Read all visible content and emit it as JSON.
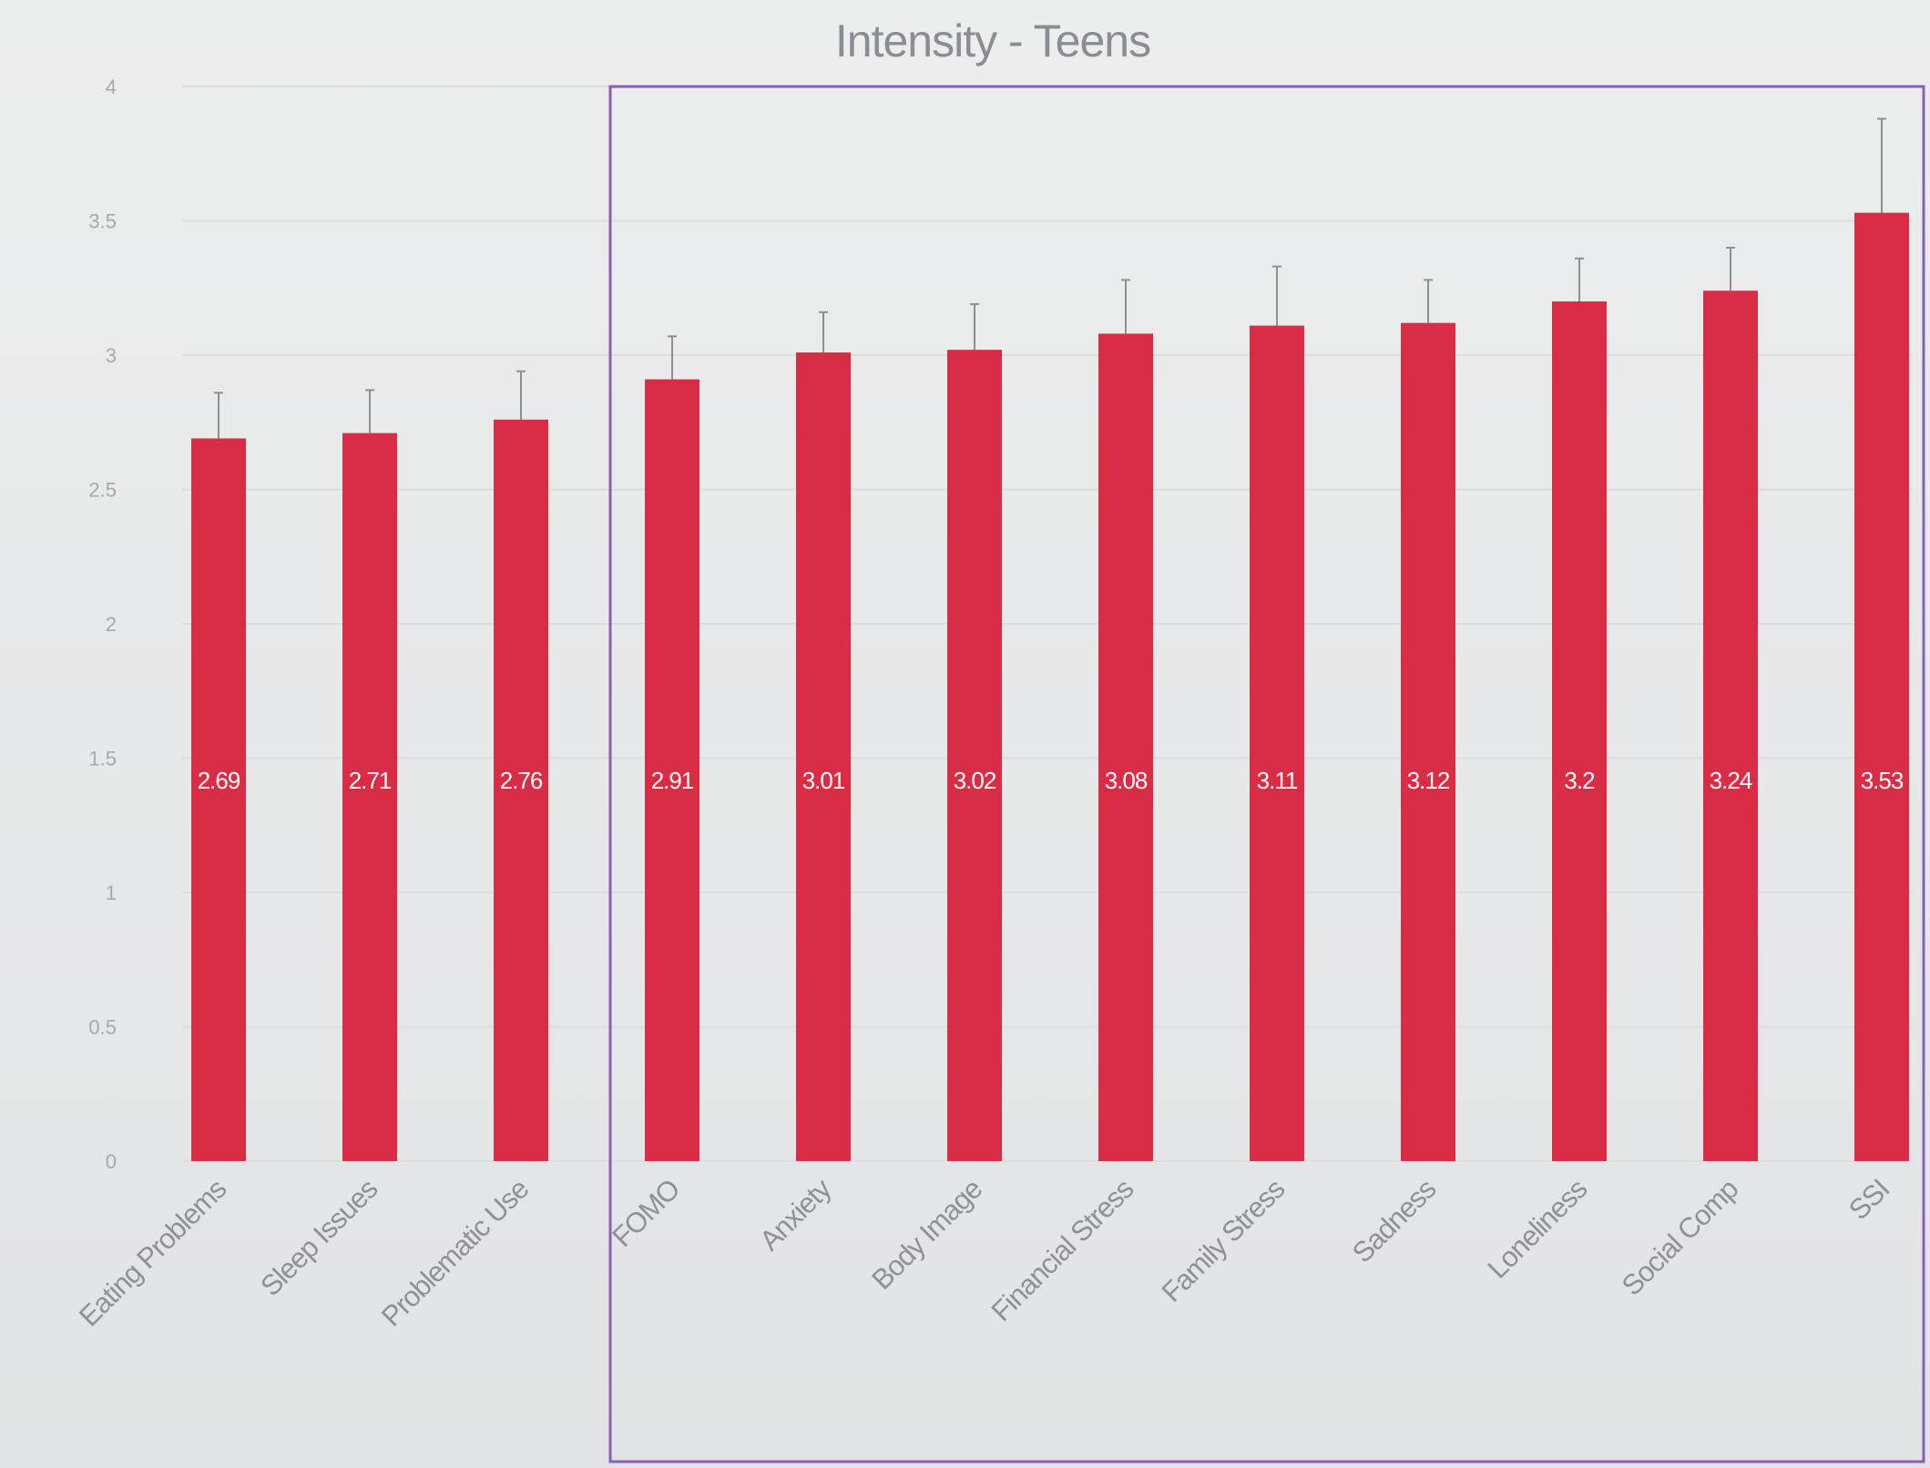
{
  "chart_data": {
    "type": "bar",
    "title": "Intensity - Teens",
    "categories": [
      "Eating Problems",
      "Sleep Issues",
      "Problematic Use",
      "FOMO",
      "Anxiety",
      "Body Image",
      "Financial Stress",
      "Family Stress",
      "Sadness",
      "Loneliness",
      "Social Comp",
      "SSI"
    ],
    "series": [
      {
        "values": [
          2.69,
          2.71,
          2.76,
          2.91,
          3.01,
          3.02,
          3.08,
          3.11,
          3.12,
          3.2,
          3.24,
          3.53
        ],
        "labels": [
          "2.69",
          "2.71",
          "2.76",
          "2.91",
          "3.01",
          "3.02",
          "3.08",
          "3.11",
          "3.12",
          "3.2",
          "3.24",
          "3.53"
        ],
        "error": [
          0.17,
          0.16,
          0.18,
          0.16,
          0.15,
          0.17,
          0.2,
          0.22,
          0.16,
          0.16,
          0.16,
          0.35
        ]
      }
    ],
    "xlabel": "",
    "ylabel": "",
    "ylim": [
      0,
      4
    ],
    "yticks": [
      "0",
      "0.5",
      "1",
      "1.5",
      "2",
      "2.5",
      "3",
      "3.5",
      "4"
    ],
    "grid": true,
    "highlight_box": {
      "first_category": "FOMO",
      "last_category": "SSI"
    },
    "colors": {
      "bar": "#d92d45",
      "error_bar": "#8f8f8f",
      "highlight_box": "#8b5fb8"
    }
  }
}
